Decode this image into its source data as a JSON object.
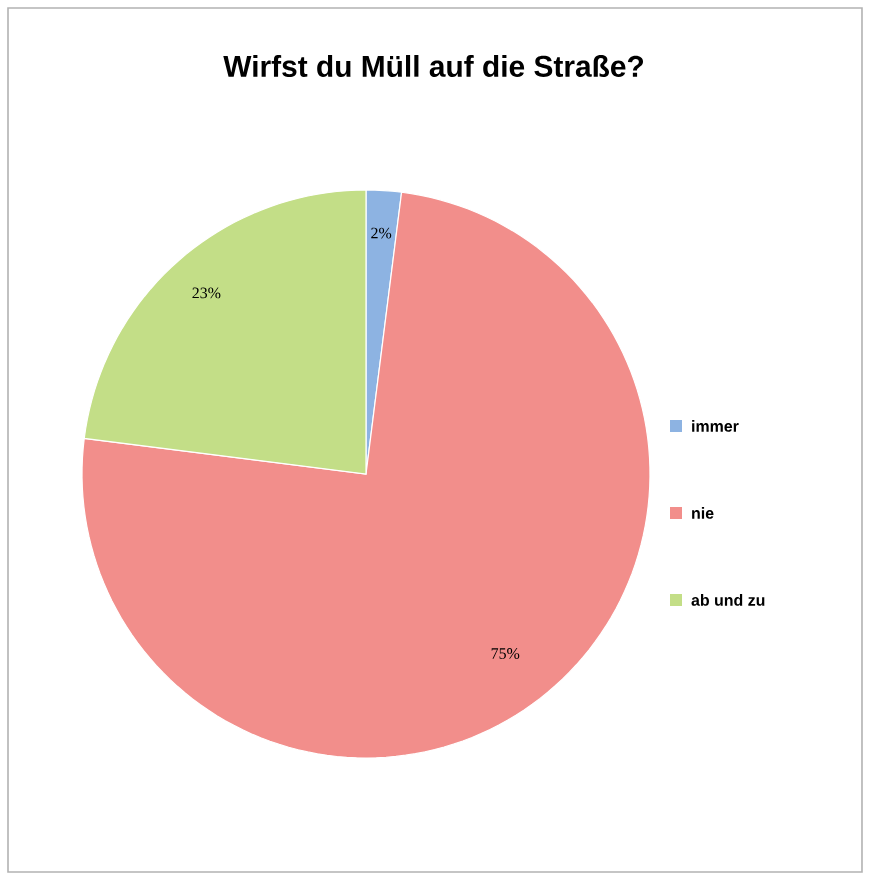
{
  "chart_data": {
    "type": "pie",
    "title": "Wirfst du Müll auf die Straße?",
    "categories": [
      "immer",
      "nie",
      "ab und zu"
    ],
    "values": [
      2,
      75,
      23
    ],
    "colors": [
      "#8db3e2",
      "#f28e8b",
      "#c3de87"
    ],
    "value_labels": [
      "2%",
      "75%",
      "23%"
    ],
    "legend": "right"
  }
}
